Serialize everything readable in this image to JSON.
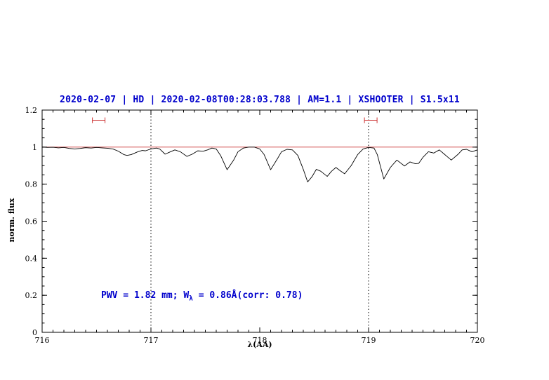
{
  "chart_data": {
    "type": "line",
    "title": "2020-02-07 | HD | 2020-02-08T00:28:03.788 | AM=1.1 | XSHOOTER | S1.5x11",
    "xlabel": "λ(AA)",
    "ylabel": "norm. flux",
    "annotation": {
      "pre": "PWV = 1.82 mm; W",
      "sub": "λ",
      "post": " = 0.86Å(corr: 0.78)"
    },
    "xlim": [
      716,
      720
    ],
    "ylim": [
      0,
      1.2
    ],
    "x_ticks": [
      716,
      717,
      718,
      719,
      720
    ],
    "x_tick_labels": [
      "716",
      "717",
      "718",
      "719",
      "720"
    ],
    "y_ticks": [
      0,
      0.2,
      0.4,
      0.6,
      0.8,
      1,
      1.2
    ],
    "y_tick_labels": [
      "0",
      "0.2",
      "0.4",
      "0.6",
      "0.8",
      "1",
      "1.2"
    ],
    "x_minor_step": 0.1,
    "y_minor_step": 0.05,
    "vlines": [
      717,
      719
    ],
    "continuum_y": 1.0,
    "range_markers": [
      {
        "x": 716.52,
        "y": 1.145,
        "half_width": 0.058
      },
      {
        "x": 719.02,
        "y": 1.145,
        "half_width": 0.058
      }
    ],
    "colors": {
      "spectrum": "#000000",
      "continuum": "#cc3333",
      "markers": "#cc3333",
      "accent_text": "#0000cc",
      "axis": "#000000"
    },
    "series": [
      {
        "name": "spectrum",
        "points": [
          [
            716.0,
            1.0
          ],
          [
            716.05,
            0.998
          ],
          [
            716.1,
            0.999
          ],
          [
            716.15,
            0.996
          ],
          [
            716.2,
            0.998
          ],
          [
            716.25,
            0.993
          ],
          [
            716.3,
            0.99
          ],
          [
            716.35,
            0.993
          ],
          [
            716.4,
            0.997
          ],
          [
            716.45,
            0.995
          ],
          [
            716.5,
            0.998
          ],
          [
            716.55,
            0.996
          ],
          [
            716.6,
            0.994
          ],
          [
            716.65,
            0.99
          ],
          [
            716.7,
            0.978
          ],
          [
            716.75,
            0.96
          ],
          [
            716.78,
            0.955
          ],
          [
            716.82,
            0.96
          ],
          [
            716.88,
            0.975
          ],
          [
            716.92,
            0.982
          ],
          [
            716.95,
            0.98
          ],
          [
            717.0,
            0.99
          ],
          [
            717.05,
            0.995
          ],
          [
            717.08,
            0.99
          ],
          [
            717.13,
            0.962
          ],
          [
            717.18,
            0.975
          ],
          [
            717.22,
            0.985
          ],
          [
            717.27,
            0.975
          ],
          [
            717.33,
            0.95
          ],
          [
            717.38,
            0.962
          ],
          [
            717.43,
            0.98
          ],
          [
            717.48,
            0.978
          ],
          [
            717.52,
            0.985
          ],
          [
            717.56,
            0.995
          ],
          [
            717.6,
            0.99
          ],
          [
            717.64,
            0.955
          ],
          [
            717.7,
            0.878
          ],
          [
            717.76,
            0.93
          ],
          [
            717.8,
            0.975
          ],
          [
            717.85,
            0.995
          ],
          [
            717.9,
            1.0
          ],
          [
            717.95,
            1.0
          ],
          [
            718.0,
            0.99
          ],
          [
            718.04,
            0.96
          ],
          [
            718.1,
            0.878
          ],
          [
            718.16,
            0.935
          ],
          [
            718.2,
            0.975
          ],
          [
            718.25,
            0.988
          ],
          [
            718.3,
            0.985
          ],
          [
            718.35,
            0.955
          ],
          [
            718.4,
            0.88
          ],
          [
            718.44,
            0.812
          ],
          [
            718.48,
            0.84
          ],
          [
            718.52,
            0.88
          ],
          [
            718.56,
            0.87
          ],
          [
            718.62,
            0.842
          ],
          [
            718.66,
            0.87
          ],
          [
            718.7,
            0.89
          ],
          [
            718.74,
            0.872
          ],
          [
            718.78,
            0.856
          ],
          [
            718.84,
            0.9
          ],
          [
            718.9,
            0.96
          ],
          [
            718.95,
            0.99
          ],
          [
            719.0,
            0.998
          ],
          [
            719.05,
            0.995
          ],
          [
            719.08,
            0.96
          ],
          [
            719.14,
            0.828
          ],
          [
            719.2,
            0.89
          ],
          [
            719.26,
            0.93
          ],
          [
            719.33,
            0.898
          ],
          [
            719.38,
            0.92
          ],
          [
            719.43,
            0.91
          ],
          [
            719.46,
            0.912
          ],
          [
            719.5,
            0.945
          ],
          [
            719.55,
            0.975
          ],
          [
            719.6,
            0.968
          ],
          [
            719.65,
            0.985
          ],
          [
            719.7,
            0.96
          ],
          [
            719.76,
            0.93
          ],
          [
            719.82,
            0.96
          ],
          [
            719.86,
            0.985
          ],
          [
            719.9,
            0.988
          ],
          [
            719.95,
            0.975
          ],
          [
            720.0,
            0.985
          ]
        ]
      }
    ]
  }
}
